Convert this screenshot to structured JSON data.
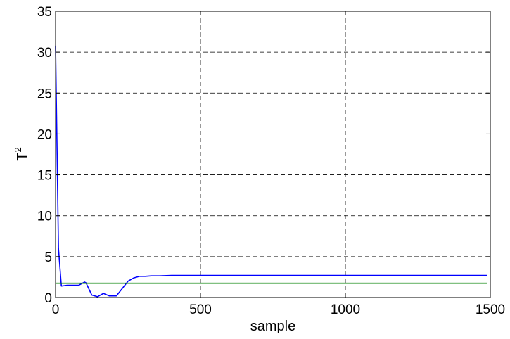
{
  "chart_data": {
    "type": "line",
    "title": "",
    "xlabel": "sample",
    "ylabel": "T",
    "ylabel_superscript": "2",
    "xlim": [
      0,
      1500
    ],
    "ylim": [
      0,
      35
    ],
    "xticks": [
      0,
      500,
      1000,
      1500
    ],
    "yticks": [
      0,
      5,
      10,
      15,
      20,
      25,
      30,
      35
    ],
    "grid": true,
    "grid_style": "dashed",
    "legend": "none",
    "series": [
      {
        "color": "#0000ff",
        "x": [
          0,
          10,
          20,
          40,
          60,
          80,
          100,
          105,
          125,
          145,
          165,
          185,
          210,
          230,
          250,
          270,
          290,
          310,
          330,
          360,
          400,
          450,
          500,
          700,
          1000,
          1300,
          1490
        ],
        "y": [
          30.8,
          6.0,
          1.4,
          1.5,
          1.5,
          1.5,
          1.9,
          1.8,
          0.3,
          0.1,
          0.5,
          0.2,
          0.2,
          1.1,
          2.0,
          2.4,
          2.6,
          2.6,
          2.65,
          2.65,
          2.7,
          2.7,
          2.7,
          2.7,
          2.7,
          2.7,
          2.7
        ]
      },
      {
        "color": "#008000",
        "x": [
          0,
          1490
        ],
        "y": [
          1.75,
          1.75
        ]
      }
    ]
  }
}
